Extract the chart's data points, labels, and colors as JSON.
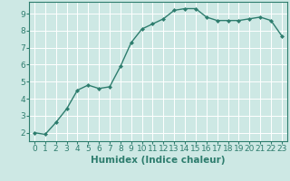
{
  "x": [
    0,
    1,
    2,
    3,
    4,
    5,
    6,
    7,
    8,
    9,
    10,
    11,
    12,
    13,
    14,
    15,
    16,
    17,
    18,
    19,
    20,
    21,
    22,
    23
  ],
  "y": [
    2.0,
    1.9,
    2.6,
    3.4,
    4.5,
    4.8,
    4.6,
    4.7,
    5.9,
    7.3,
    8.1,
    8.4,
    8.7,
    9.2,
    9.3,
    9.3,
    8.8,
    8.6,
    8.6,
    8.6,
    8.7,
    8.8,
    8.6,
    7.7
  ],
  "line_color": "#2e7d6e",
  "marker": "D",
  "marker_size": 2.0,
  "bg_color": "#cde8e4",
  "grid_color": "#ffffff",
  "xlabel": "Humidex (Indice chaleur)",
  "xlim": [
    -0.5,
    23.5
  ],
  "ylim": [
    1.5,
    9.7
  ],
  "yticks": [
    2,
    3,
    4,
    5,
    6,
    7,
    8,
    9
  ],
  "xticks": [
    0,
    1,
    2,
    3,
    4,
    5,
    6,
    7,
    8,
    9,
    10,
    11,
    12,
    13,
    14,
    15,
    16,
    17,
    18,
    19,
    20,
    21,
    22,
    23
  ],
  "label_fontsize": 7.5,
  "tick_fontsize": 6.5,
  "linewidth": 1.0
}
